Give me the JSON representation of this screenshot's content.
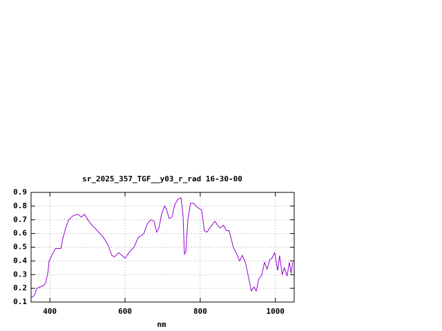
{
  "chart_data": {
    "type": "line",
    "title": "sr_2025_357_TGF__y03_r_rad 16-30-00",
    "x_label": "nm",
    "x": [
      350,
      359,
      365,
      374,
      383,
      389,
      395,
      398,
      407,
      415,
      429,
      435,
      442,
      450,
      462,
      475,
      484,
      492,
      501,
      512,
      530,
      543,
      554,
      565,
      572,
      583,
      600,
      613,
      624,
      635,
      650,
      659,
      668,
      677,
      684,
      690,
      697,
      705,
      710,
      717,
      725,
      732,
      741,
      749,
      754,
      758,
      762,
      767,
      774,
      782,
      793,
      804,
      811,
      818,
      828,
      839,
      846,
      853,
      862,
      870,
      877,
      888,
      897,
      905,
      912,
      921,
      930,
      936,
      943,
      949,
      956,
      963,
      971,
      978,
      985,
      991,
      998,
      1006,
      1011,
      1018,
      1024,
      1031,
      1037,
      1042,
      1046
    ],
    "values": [
      0.13,
      0.15,
      0.2,
      0.21,
      0.22,
      0.24,
      0.32,
      0.4,
      0.45,
      0.49,
      0.49,
      0.57,
      0.64,
      0.7,
      0.73,
      0.74,
      0.72,
      0.74,
      0.7,
      0.66,
      0.61,
      0.57,
      0.52,
      0.44,
      0.43,
      0.46,
      0.42,
      0.47,
      0.5,
      0.57,
      0.6,
      0.67,
      0.7,
      0.69,
      0.61,
      0.64,
      0.74,
      0.8,
      0.78,
      0.71,
      0.72,
      0.81,
      0.85,
      0.86,
      0.74,
      0.45,
      0.47,
      0.7,
      0.82,
      0.82,
      0.79,
      0.77,
      0.62,
      0.61,
      0.65,
      0.69,
      0.66,
      0.64,
      0.66,
      0.62,
      0.62,
      0.5,
      0.45,
      0.4,
      0.44,
      0.38,
      0.26,
      0.18,
      0.21,
      0.18,
      0.27,
      0.29,
      0.39,
      0.34,
      0.41,
      0.42,
      0.46,
      0.33,
      0.44,
      0.3,
      0.35,
      0.29,
      0.39,
      0.31,
      0.39
    ],
    "color": "#9400d3",
    "xlim": [
      350,
      1050
    ],
    "ylim": [
      0.1,
      0.9
    ],
    "xticks": [
      400,
      600,
      800,
      1000
    ],
    "yticks": [
      0.1,
      0.2,
      0.3,
      0.4,
      0.5,
      0.6,
      0.7,
      0.8,
      0.9
    ],
    "grid": true
  }
}
